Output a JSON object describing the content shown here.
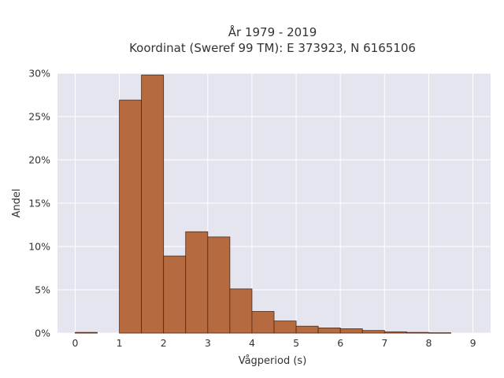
{
  "chart_data": {
    "type": "bar",
    "title_line1": "År 1979 - 2019",
    "title_line2": "Koordinat (Sweref 99 TM): E 373923, N 6165106",
    "xlabel": "Vågperiod (s)",
    "ylabel": "Andel",
    "xlim": [
      -0.4,
      9.4
    ],
    "ylim": [
      0,
      0.3
    ],
    "x_ticks": [
      "0",
      "1",
      "2",
      "3",
      "4",
      "5",
      "6",
      "7",
      "8",
      "9"
    ],
    "y_ticks": [
      "0%",
      "5%",
      "10%",
      "15%",
      "20%",
      "25%",
      "30%"
    ],
    "grid": true,
    "bin_width": 0.5,
    "bins": [
      {
        "x0": 0.0,
        "value": 0.0008
      },
      {
        "x0": 0.5,
        "value": 0.0
      },
      {
        "x0": 1.0,
        "value": 0.269
      },
      {
        "x0": 1.5,
        "value": 0.298
      },
      {
        "x0": 2.0,
        "value": 0.089
      },
      {
        "x0": 2.5,
        "value": 0.117
      },
      {
        "x0": 3.0,
        "value": 0.111
      },
      {
        "x0": 3.5,
        "value": 0.051
      },
      {
        "x0": 4.0,
        "value": 0.025
      },
      {
        "x0": 4.5,
        "value": 0.014
      },
      {
        "x0": 5.0,
        "value": 0.008
      },
      {
        "x0": 5.5,
        "value": 0.006
      },
      {
        "x0": 6.0,
        "value": 0.005
      },
      {
        "x0": 6.5,
        "value": 0.003
      },
      {
        "x0": 7.0,
        "value": 0.0015
      },
      {
        "x0": 7.5,
        "value": 0.0008
      },
      {
        "x0": 8.0,
        "value": 0.0004
      }
    ],
    "colors": {
      "bar_fill": "#b66a40",
      "bar_stroke": "#4a2a17",
      "plot_bg": "#e5e5f0",
      "grid": "#ffffff"
    }
  }
}
